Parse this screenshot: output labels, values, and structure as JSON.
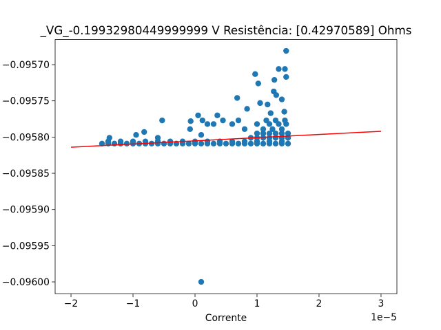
{
  "chart_data": {
    "type": "scatter",
    "title": "_VG_-0.19932980449999999 V  Resistência: [0.42970589] Ohms",
    "x_label": "Corrente",
    "x_offset_label": "1e−5",
    "xlim": [
      -2.256,
      3.256
    ],
    "ylim": [
      -0.0960163,
      -0.0956654
    ],
    "xticks": [
      {
        "value": -2,
        "label": "−2"
      },
      {
        "value": -1,
        "label": "−1"
      },
      0,
      1,
      2,
      3
    ],
    "yticks": [
      {
        "value": -0.0957,
        "label": "−0.09570"
      },
      {
        "value": -0.09575,
        "label": "−0.09575"
      },
      {
        "value": -0.0958,
        "label": "−0.09580"
      },
      {
        "value": -0.09585,
        "label": "−0.09585"
      },
      {
        "value": -0.0959,
        "label": "−0.09590"
      },
      {
        "value": -0.09595,
        "label": "−0.09595"
      },
      {
        "value": -0.096,
        "label": "−0.09600"
      }
    ],
    "series": [
      {
        "type": "scatter",
        "color": "#1f77b4",
        "x": [
          -1.5,
          -1.4,
          -1.3,
          -1.2,
          -1.1,
          -1.0,
          -0.9,
          -0.8,
          -0.7,
          -0.6,
          -0.5,
          -0.4,
          -0.3,
          -0.2,
          -0.1,
          0,
          0.1,
          0.2,
          0.3,
          0.4,
          0.5,
          0.6,
          0.7,
          0.8,
          0.9,
          1.0,
          1.1,
          1.2,
          1.3,
          1.4,
          1.5,
          -1.4,
          -1.2,
          -1.0,
          -0.8,
          -0.6,
          -0.4,
          -0.2,
          0,
          0.2,
          0.4,
          0.6,
          0.8,
          1.0,
          1.2,
          1.4,
          0.9,
          1.0,
          1.1,
          1.2,
          1.3,
          1.4,
          1.5,
          1.0,
          1.1,
          1.2,
          1.3,
          1.4,
          1.5,
          0.8,
          1.1,
          1.25,
          1.4,
          0.3,
          0.6,
          1.0,
          1.2,
          1.35,
          1.47,
          0.45,
          0.7,
          1.15,
          1.3,
          1.45,
          1.47,
          1.35,
          1.45,
          0.97,
          1.47,
          1.28,
          1.02,
          1.27,
          1.31,
          0.68,
          1.4,
          1.05,
          1.17,
          0.84,
          1.44,
          1.22,
          0.05,
          0.36,
          0.12,
          -0.53,
          -0.07,
          0.2,
          -0.08,
          -0.82,
          -0.95,
          -1.38,
          -0.6,
          0.1,
          0.1
        ],
        "values": [
          -0.095809,
          -0.095809,
          -0.095809,
          -0.095809,
          -0.095809,
          -0.095809,
          -0.095809,
          -0.095809,
          -0.095809,
          -0.095809,
          -0.095809,
          -0.095809,
          -0.095809,
          -0.095809,
          -0.095809,
          -0.095809,
          -0.095809,
          -0.095809,
          -0.095809,
          -0.095809,
          -0.095809,
          -0.095809,
          -0.095809,
          -0.095809,
          -0.095809,
          -0.095809,
          -0.095809,
          -0.095809,
          -0.095809,
          -0.095809,
          -0.095809,
          -0.095806,
          -0.095806,
          -0.095806,
          -0.095806,
          -0.095806,
          -0.095806,
          -0.095806,
          -0.095806,
          -0.095806,
          -0.095806,
          -0.095806,
          -0.095806,
          -0.095806,
          -0.095806,
          -0.095806,
          -0.095801,
          -0.095801,
          -0.095801,
          -0.095801,
          -0.095801,
          -0.095801,
          -0.095801,
          -0.095795,
          -0.095795,
          -0.095795,
          -0.095795,
          -0.095795,
          -0.095795,
          -0.095789,
          -0.095789,
          -0.095789,
          -0.095789,
          -0.095782,
          -0.095782,
          -0.095782,
          -0.095782,
          -0.095782,
          -0.095782,
          -0.095777,
          -0.095777,
          -0.095777,
          -0.095777,
          -0.095777,
          -0.095681,
          -0.095706,
          -0.095706,
          -0.095713,
          -0.095717,
          -0.095721,
          -0.095726,
          -0.095737,
          -0.095742,
          -0.095746,
          -0.095748,
          -0.095753,
          -0.095755,
          -0.095761,
          -0.095765,
          -0.095767,
          -0.09577,
          -0.09577,
          -0.095777,
          -0.095777,
          -0.095778,
          -0.095782,
          -0.095789,
          -0.095793,
          -0.095797,
          -0.095801,
          -0.095801,
          -0.095797,
          -0.096
        ]
      },
      {
        "type": "line",
        "color": "#ff0000",
        "x": [
          -2,
          3
        ],
        "values": [
          -0.095814,
          -0.095792
        ]
      }
    ]
  }
}
